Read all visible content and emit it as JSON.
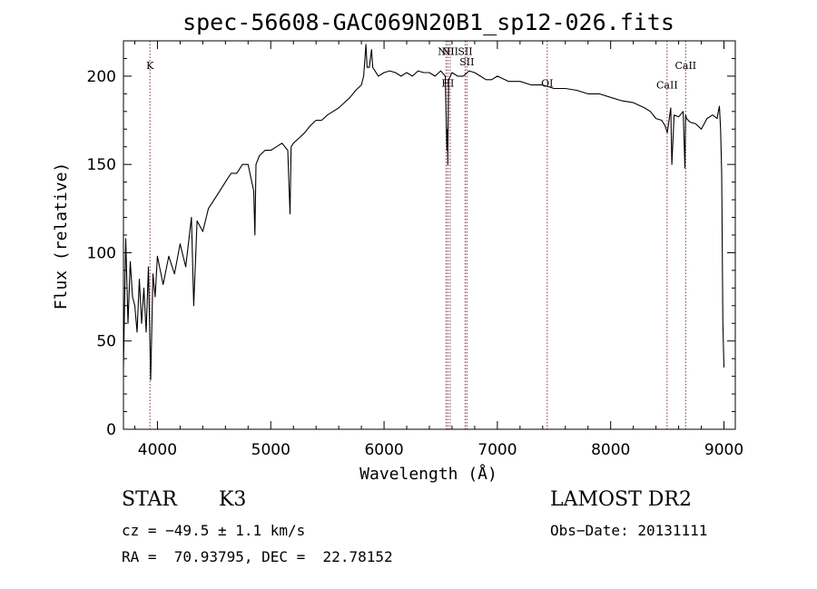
{
  "chart_data": {
    "type": "line",
    "title": "spec-56608-GAC069N20B1_sp12-026.fits",
    "xlabel": "Wavelength (Å)",
    "ylabel": "Flux (relative)",
    "xlim": [
      3700,
      9100
    ],
    "ylim": [
      0,
      220
    ],
    "x_ticks": [
      "4000",
      "5000",
      "6000",
      "7000",
      "8000",
      "9000"
    ],
    "x_tick_values": [
      4000,
      5000,
      6000,
      7000,
      8000,
      9000
    ],
    "y_ticks": [
      "0",
      "50",
      "100",
      "150",
      "200"
    ],
    "y_tick_values": [
      0,
      50,
      100,
      150,
      200
    ],
    "grid": false,
    "line_color": "#000000",
    "marker_color": "#b22222",
    "spectral_lines": [
      {
        "label": "K",
        "wavelength": 3934,
        "label_flux": 204
      },
      {
        "label": "NII",
        "wavelength": 6548,
        "label_flux": 212
      },
      {
        "label": "HI",
        "wavelength": 6563,
        "label_flux": 194
      },
      {
        "label": "NII",
        "wavelength": 6583,
        "label_flux": 212
      },
      {
        "label": "SII",
        "wavelength": 6716,
        "label_flux": 212
      },
      {
        "label": "SII",
        "wavelength": 6731,
        "label_flux": 206
      },
      {
        "label": "OI",
        "wavelength": 7440,
        "label_flux": 194
      },
      {
        "label": "CaII",
        "wavelength": 8498,
        "label_flux": 193
      },
      {
        "label": "CaII",
        "wavelength": 8662,
        "label_flux": 204
      }
    ],
    "series": [
      {
        "x": [
          3700,
          3720,
          3740,
          3760,
          3780,
          3800,
          3820,
          3840,
          3860,
          3880,
          3900,
          3920,
          3940,
          3960,
          3980,
          4000,
          4050,
          4100,
          4150,
          4200,
          4250,
          4300,
          4320,
          4350,
          4400,
          4450,
          4500,
          4550,
          4600,
          4650,
          4700,
          4750,
          4800,
          4850,
          4860,
          4870,
          4900,
          4950,
          5000,
          5050,
          5100,
          5150,
          5170,
          5180,
          5200,
          5250,
          5300,
          5350,
          5400,
          5450,
          5500,
          5550,
          5600,
          5650,
          5700,
          5750,
          5800,
          5820,
          5840,
          5850,
          5870,
          5890,
          5900,
          5950,
          6000,
          6050,
          6100,
          6150,
          6200,
          6250,
          6300,
          6350,
          6400,
          6450,
          6500,
          6540,
          6555,
          6560,
          6563,
          6566,
          6570,
          6600,
          6650,
          6700,
          6750,
          6800,
          6850,
          6900,
          6950,
          7000,
          7100,
          7200,
          7300,
          7400,
          7500,
          7600,
          7700,
          7800,
          7900,
          8000,
          8100,
          8200,
          8300,
          8350,
          8400,
          8450,
          8480,
          8500,
          8530,
          8540,
          8560,
          8600,
          8640,
          8655,
          8662,
          8670,
          8700,
          8750,
          8800,
          8850,
          8900,
          8940,
          8950,
          8960,
          8970,
          8980,
          8990,
          9000
        ],
        "y": [
          35,
          108,
          60,
          95,
          75,
          70,
          55,
          85,
          60,
          80,
          55,
          92,
          28,
          88,
          75,
          98,
          82,
          98,
          88,
          105,
          92,
          120,
          70,
          118,
          112,
          125,
          130,
          135,
          140,
          145,
          145,
          150,
          150,
          135,
          110,
          150,
          155,
          158,
          158,
          160,
          162,
          158,
          122,
          160,
          162,
          165,
          168,
          172,
          175,
          175,
          178,
          180,
          182,
          185,
          188,
          192,
          195,
          200,
          218,
          205,
          205,
          215,
          205,
          200,
          202,
          203,
          202,
          200,
          202,
          200,
          203,
          202,
          202,
          200,
          203,
          200,
          158,
          170,
          150,
          175,
          198,
          202,
          200,
          200,
          203,
          202,
          200,
          198,
          198,
          200,
          197,
          197,
          195,
          195,
          193,
          193,
          192,
          190,
          190,
          188,
          186,
          185,
          182,
          180,
          176,
          175,
          172,
          168,
          182,
          150,
          178,
          177,
          180,
          148,
          178,
          176,
          174,
          173,
          170,
          176,
          178,
          176,
          180,
          183,
          170,
          145,
          60,
          35
        ]
      }
    ]
  },
  "info": {
    "object_class": "STAR",
    "subclass": "K3",
    "survey": "LAMOST DR2",
    "redshift": "cz = −49.5 ± 1.1 km/s",
    "obs_date": "Obs−Date: 20131111",
    "coordinates": "RA =  70.93795, DEC =  22.78152"
  }
}
